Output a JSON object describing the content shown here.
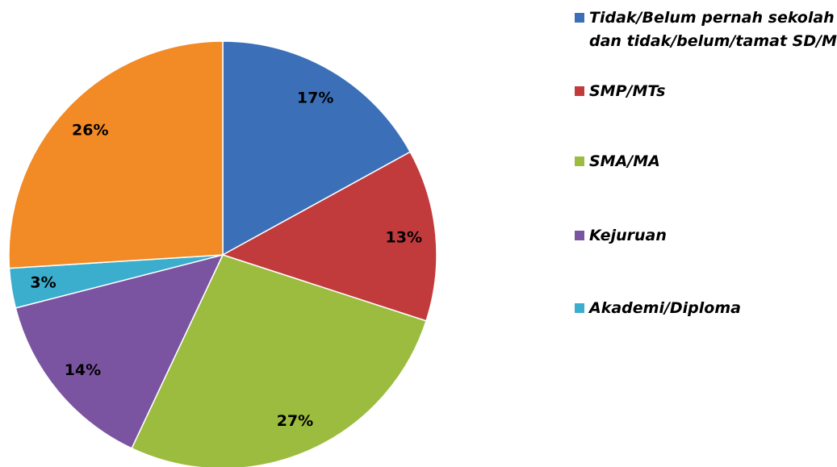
{
  "chart_data": {
    "type": "pie",
    "categories": [
      "Tidak/Belum pernah sekolah dan tidak/belum/tamat SD/Mi",
      "SMP/MTs",
      "SMA/MA",
      "Kejuruan",
      "Akademi/Diploma",
      null
    ],
    "values": [
      17,
      13,
      27,
      14,
      3,
      26
    ],
    "value_labels": [
      "17%",
      "13%",
      "27%",
      "14%",
      "3%",
      "26%"
    ],
    "colors": [
      "#3b70b9",
      "#c23b3c",
      "#9cbc40",
      "#7a54a1",
      "#3badcd",
      "#f28a25"
    ],
    "legend": "right"
  }
}
